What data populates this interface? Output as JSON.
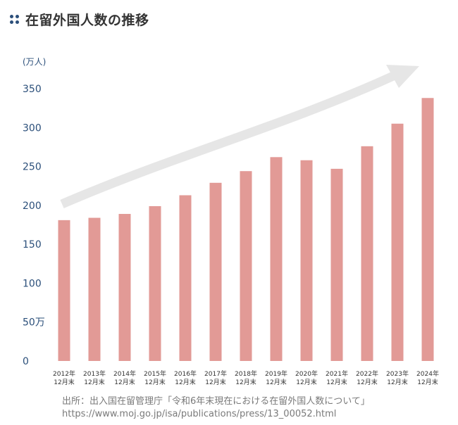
{
  "title": "在留外国人数の推移",
  "icon": "dots-grid-icon",
  "colors": {
    "bar": "#e29a96",
    "axis_text": "#2b4f7a",
    "arrow": "#e6e6e6",
    "title": "#333333",
    "source": "#7a7a7a"
  },
  "chart_data": {
    "type": "bar",
    "unit_label": "(万人)",
    "categories": [
      [
        "2012年",
        "12月末"
      ],
      [
        "2013年",
        "12月末"
      ],
      [
        "2014年",
        "12月末"
      ],
      [
        "2015年",
        "12月末"
      ],
      [
        "2016年",
        "12月末"
      ],
      [
        "2017年",
        "12月末"
      ],
      [
        "2018年",
        "12月末"
      ],
      [
        "2019年",
        "12月末"
      ],
      [
        "2020年",
        "12月末"
      ],
      [
        "2021年",
        "12月末"
      ],
      [
        "2022年",
        "12月末"
      ],
      [
        "2023年",
        "12月末"
      ],
      [
        "2024年",
        "12月末"
      ]
    ],
    "values": [
      181,
      184,
      189,
      199,
      213,
      229,
      244,
      262,
      258,
      247,
      276,
      305,
      338
    ],
    "ylim": [
      0,
      350
    ],
    "yticks": [
      {
        "value": 0,
        "label": "0"
      },
      {
        "value": 50,
        "label": "50万"
      },
      {
        "value": 100,
        "label": "100"
      },
      {
        "value": 150,
        "label": "150"
      },
      {
        "value": 200,
        "label": "200"
      },
      {
        "value": 250,
        "label": "250"
      },
      {
        "value": 300,
        "label": "300"
      },
      {
        "value": 350,
        "label": "350"
      }
    ],
    "grid": false,
    "annotation": "upward-trend-arrow"
  },
  "source": {
    "line1": "出所：出入国在留管理庁「令和6年末現在における在留外国人数について」",
    "line2": "https://www.moj.go.jp/isa/publications/press/13_00052.html"
  }
}
